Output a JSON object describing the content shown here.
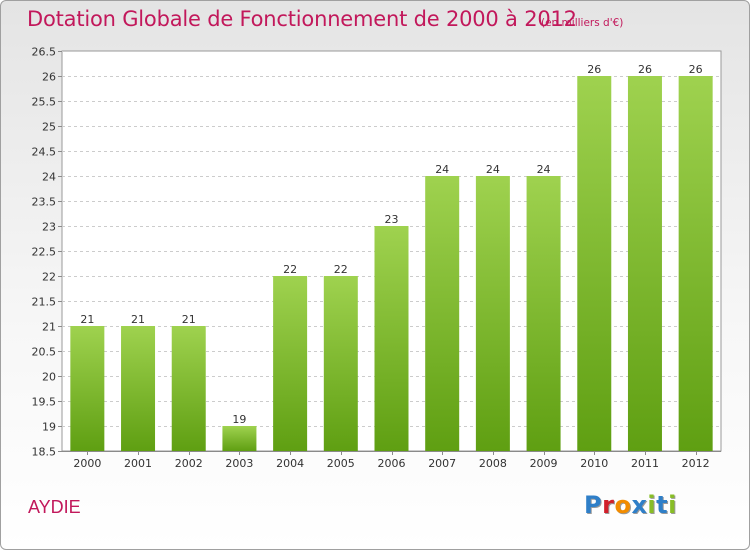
{
  "header": {
    "title": "Dotation Globale de Fonctionnement de 2000 à 2012",
    "unit": "(en milliers d'€)"
  },
  "footer": {
    "entity": "AYDIE",
    "logo_text": "Proxiti"
  },
  "colors": {
    "title": "#c2185b",
    "bar_light": "#9fd24f",
    "bar_dark": "#5f9f12",
    "grid": "#cccccc",
    "logo_letters": [
      "#2f7fc8",
      "#d11f2a",
      "#f28c00",
      "#2f7fc8",
      "#88bd26",
      "#2f7fc8",
      "#88bd26"
    ]
  },
  "chart_data": {
    "type": "bar",
    "categories": [
      "2000",
      "2001",
      "2002",
      "2003",
      "2004",
      "2005",
      "2006",
      "2007",
      "2008",
      "2009",
      "2010",
      "2011",
      "2012"
    ],
    "values": [
      21,
      21,
      21,
      19,
      22,
      22,
      23,
      24,
      24,
      24,
      26,
      26,
      26
    ],
    "ylim": [
      18.5,
      26.5
    ],
    "yticks": [
      "18.5",
      "19",
      "19.5",
      "20",
      "20.5",
      "21",
      "21.5",
      "22",
      "22.5",
      "23",
      "23.5",
      "24",
      "24.5",
      "25",
      "25.5",
      "26",
      "26.5"
    ],
    "grid": true,
    "legend": "none"
  }
}
